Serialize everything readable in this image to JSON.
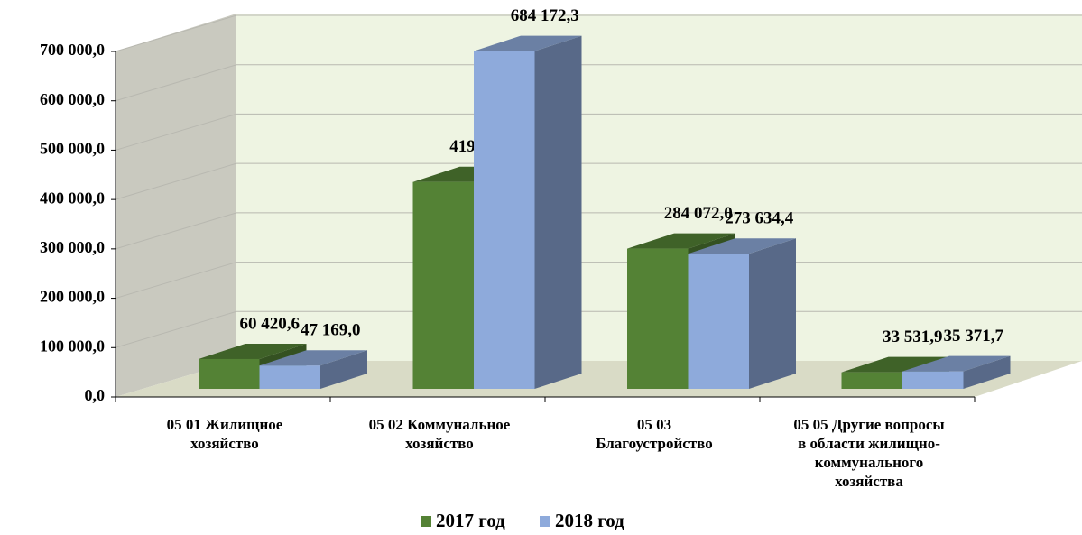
{
  "chart_data": {
    "type": "bar3d",
    "categories": [
      "05 01 Жилищное хозяйство",
      "05 02 Коммунальное хозяйство",
      "05 03 Благоустройство",
      "05 05 Другие вопросы в области жилищно-коммунального хозяйства"
    ],
    "series": [
      {
        "name": "2017 год",
        "color": "#548235",
        "values": [
          60420.6,
          419097.8,
          284072.0,
          33531.9
        ],
        "value_labels": [
          "60 420,6",
          "419 097,8",
          "284 072,0",
          "33 531,9"
        ]
      },
      {
        "name": "2018 год",
        "color": "#8eaadb",
        "values": [
          47169.0,
          684172.3,
          273634.4,
          35371.7
        ],
        "value_labels": [
          "47 169,0",
          "684 172,3",
          "273 634,4",
          "35 371,7"
        ]
      }
    ],
    "ylim": [
      0,
      700000
    ],
    "yticks": [
      {
        "value": 0,
        "label": "0,0"
      },
      {
        "value": 100000,
        "label": "100 000,0"
      },
      {
        "value": 200000,
        "label": "200 000,0"
      },
      {
        "value": 300000,
        "label": "300 000,0"
      },
      {
        "value": 400000,
        "label": "400 000,0"
      },
      {
        "value": 500000,
        "label": "500 000,0"
      },
      {
        "value": 600000,
        "label": "600 000,0"
      },
      {
        "value": 700000,
        "label": "700 000,0"
      }
    ],
    "grid": true,
    "legend": "bottom"
  }
}
